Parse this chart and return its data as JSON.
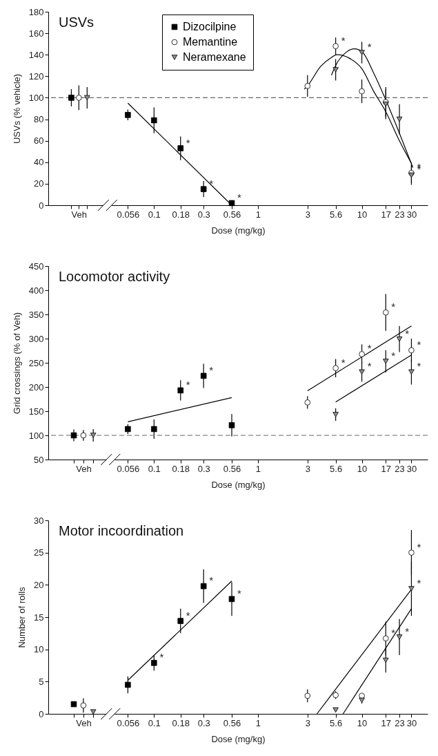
{
  "chart_data": [
    {
      "type": "scatter",
      "title": "USVs",
      "xlabel": "Dose (mg/kg)",
      "ylabel": "USVs (% vehicle)",
      "log": "x",
      "legend": "top",
      "xlim": [
        0.0096,
        43
      ],
      "xticks": [
        {
          "value": 0.016,
          "label": null
        },
        {
          "value": 0.0189,
          "label": "Veh"
        },
        {
          "value": 0.0227,
          "label": null
        },
        0.056,
        0.1,
        0.18,
        0.3,
        0.56,
        1,
        3,
        5.6,
        10,
        17,
        23,
        30
      ],
      "ylim": [
        0,
        180
      ],
      "yticks": [
        0,
        20,
        40,
        60,
        80,
        100,
        120,
        140,
        160,
        180
      ],
      "series": [
        {
          "name": "Dizocilpine",
          "type": "scatter",
          "marker": "square",
          "color": "#000000",
          "x": [
            0.016,
            0.056,
            0.1,
            0.18,
            0.3,
            0.56
          ],
          "values": [
            100,
            84,
            79,
            53,
            15,
            2
          ],
          "errors": [
            8,
            5,
            12,
            11,
            7.5,
            null
          ]
        },
        {
          "name": "Memantine",
          "type": "scatter",
          "marker": "circle",
          "color": "#ffffff",
          "x": [
            0.0189,
            3,
            5.6,
            10,
            17,
            30
          ],
          "values": [
            100,
            111,
            148,
            106,
            96,
            30
          ],
          "errors": [
            11.5,
            10,
            8,
            11,
            14,
            9
          ]
        },
        {
          "name": "Neramexane",
          "type": "scatter",
          "marker": "triangle",
          "color": "#8c8c8c",
          "x": [
            0.0227,
            5.6,
            10,
            17,
            23,
            30
          ],
          "values": [
            100,
            126,
            142,
            94,
            80,
            28
          ],
          "errors": [
            10,
            10,
            10,
            14,
            14,
            9
          ]
        },
        {
          "type": "line",
          "color": "#000000",
          "x": [
            0.056,
            0.56
          ],
          "values": [
            95,
            0
          ]
        },
        {
          "type": "line",
          "color": "#000000",
          "x": [
            2.8,
            3,
            4,
            5,
            5.8,
            7.5,
            10,
            13,
            17,
            23,
            30
          ],
          "values": [
            108,
            111,
            129,
            137,
            140,
            137,
            127,
            106,
            87,
            60,
            39
          ]
        },
        {
          "type": "line",
          "color": "#000000",
          "x": [
            5.1,
            5.6,
            7,
            8.5,
            10,
            13,
            17,
            23,
            31
          ],
          "values": [
            121,
            130,
            142,
            145.5,
            143,
            123,
            98,
            67,
            35
          ]
        }
      ],
      "ref_lines": [
        {
          "axis": "y",
          "value": 100,
          "color": "#666666",
          "line_style": "dashed"
        }
      ],
      "annotations": [
        {
          "text": "*",
          "x": 0.18,
          "y": 53
        },
        {
          "text": "*",
          "x": 0.3,
          "y": 15
        },
        {
          "text": "*",
          "x": 0.56,
          "y": 2
        },
        {
          "text": "*",
          "x": 5.6,
          "y": 148
        },
        {
          "text": "*",
          "x": 10,
          "y": 142
        },
        {
          "text": "*",
          "x": 30,
          "y": 30
        },
        {
          "text": "*",
          "x": 30,
          "y": 28
        }
      ]
    },
    {
      "type": "scatter",
      "title": "Locomotor activity",
      "xlabel": "Dose (mg/kg)",
      "ylabel": "Grid crossings (% of Veh)",
      "log": "x",
      "xlim": [
        0.0096,
        43
      ],
      "xticks": [
        {
          "value": 0.0169,
          "label": null
        },
        {
          "value": 0.0209,
          "label": "Veh"
        },
        {
          "value": 0.026,
          "label": null
        },
        0.056,
        0.1,
        0.18,
        0.3,
        0.56,
        1,
        3,
        5.6,
        10,
        17,
        23,
        30
      ],
      "ylim": [
        50,
        450
      ],
      "yticks": [
        50,
        100,
        150,
        200,
        250,
        300,
        350,
        400,
        450
      ],
      "series": [
        {
          "type": "scatter",
          "marker": "square",
          "color": "#000000",
          "x": [
            0.0169,
            0.056,
            0.1,
            0.18,
            0.3,
            0.56
          ],
          "values": [
            100,
            113,
            113,
            193,
            223,
            121
          ],
          "errors": [
            12,
            10,
            20,
            21,
            25,
            23
          ]
        },
        {
          "type": "scatter",
          "marker": "circle",
          "color": "#ffffff",
          "x": [
            0.0209,
            3,
            5.6,
            10,
            17,
            30
          ],
          "values": [
            100,
            168,
            239,
            268,
            354,
            276
          ],
          "errors": [
            11,
            13,
            19,
            20,
            38,
            24
          ]
        },
        {
          "type": "scatter",
          "marker": "triangle",
          "color": "#8c8c8c",
          "x": [
            0.026,
            5.6,
            10,
            17,
            23,
            30
          ],
          "values": [
            100,
            143,
            231,
            253,
            299,
            231
          ],
          "errors": [
            13,
            13,
            20,
            23,
            27,
            26
          ]
        },
        {
          "type": "line",
          "color": "#000000",
          "x": [
            0.056,
            0.56
          ],
          "values": [
            128,
            178
          ]
        },
        {
          "type": "line",
          "color": "#000000",
          "x": [
            3,
            30
          ],
          "values": [
            192,
            326
          ]
        },
        {
          "type": "line",
          "color": "#000000",
          "x": [
            5.6,
            30
          ],
          "values": [
            169,
            266
          ]
        }
      ],
      "ref_lines": [
        {
          "axis": "y",
          "value": 100,
          "color": "#666666",
          "line_style": "dashed"
        }
      ],
      "annotations": [
        {
          "text": "*",
          "x": 0.18,
          "y": 193
        },
        {
          "text": "*",
          "x": 0.3,
          "y": 223
        },
        {
          "text": "*",
          "x": 5.6,
          "y": 239
        },
        {
          "text": "*",
          "x": 10,
          "y": 268
        },
        {
          "text": "*",
          "x": 10,
          "y": 231
        },
        {
          "text": "*",
          "x": 17,
          "y": 354
        },
        {
          "text": "*",
          "x": 17,
          "y": 253
        },
        {
          "text": "*",
          "x": 23,
          "y": 299
        },
        {
          "text": "*",
          "x": 30,
          "y": 276
        },
        {
          "text": "*",
          "x": 30,
          "y": 231
        }
      ]
    },
    {
      "type": "scatter",
      "title": "Motor incoordination",
      "xlabel": "Dose (mg/kg)",
      "ylabel": "Number of rolls",
      "log": "x",
      "xlim": [
        0.0096,
        43
      ],
      "xticks": [
        {
          "value": 0.0169,
          "label": null
        },
        {
          "value": 0.0209,
          "label": "Veh"
        },
        {
          "value": 0.026,
          "label": null
        },
        0.056,
        0.1,
        0.18,
        0.3,
        0.56,
        1,
        3,
        5.6,
        10,
        17,
        23,
        30
      ],
      "ylim": [
        0,
        30
      ],
      "yticks": [
        0,
        5,
        10,
        15,
        20,
        25,
        30
      ],
      "series": [
        {
          "type": "scatter",
          "marker": "square",
          "color": "#000000",
          "x": [
            0.0169,
            0.056,
            0.1,
            0.18,
            0.3,
            0.56
          ],
          "values": [
            1.5,
            4.5,
            7.9,
            14.4,
            19.8,
            17.8
          ],
          "errors": [
            null,
            1.3,
            1.2,
            1.9,
            2.6,
            2.6
          ]
        },
        {
          "type": "scatter",
          "marker": "circle",
          "color": "#ffffff",
          "x": [
            0.0209,
            3,
            5.6,
            10,
            17,
            30
          ],
          "values": [
            1.3,
            2.8,
            2.9,
            2.8,
            11.7,
            25
          ],
          "errors": [
            1.1,
            1,
            0.6,
            0.4,
            2.6,
            3.5
          ]
        },
        {
          "type": "scatter",
          "marker": "triangle",
          "color": "#8c8c8c",
          "x": [
            0.026,
            5.6,
            10,
            17,
            23,
            30
          ],
          "values": [
            0.3,
            0.6,
            2.1,
            8.3,
            11.9,
            19.4
          ],
          "errors": [
            null,
            null,
            0.5,
            1.9,
            2.8,
            4.2
          ]
        },
        {
          "type": "line",
          "color": "#000000",
          "x": [
            0.056,
            0.56
          ],
          "values": [
            5.2,
            20.6
          ]
        },
        {
          "type": "line",
          "color": "#000000",
          "x": [
            3.7,
            30
          ],
          "values": [
            0,
            19.3
          ]
        },
        {
          "type": "line",
          "color": "#000000",
          "x": [
            6.6,
            30
          ],
          "values": [
            0,
            16.3
          ]
        }
      ],
      "annotations": [
        {
          "text": "*",
          "x": 0.1,
          "y": 7.9
        },
        {
          "text": "*",
          "x": 0.18,
          "y": 14.4
        },
        {
          "text": "*",
          "x": 0.3,
          "y": 19.8
        },
        {
          "text": "*",
          "x": 0.56,
          "y": 17.8
        },
        {
          "text": "*",
          "x": 17,
          "y": 11.7
        },
        {
          "text": "*",
          "x": 23,
          "y": 11.9
        },
        {
          "text": "*",
          "x": 30,
          "y": 25
        },
        {
          "text": "*",
          "x": 30,
          "y": 19.4
        }
      ]
    }
  ]
}
